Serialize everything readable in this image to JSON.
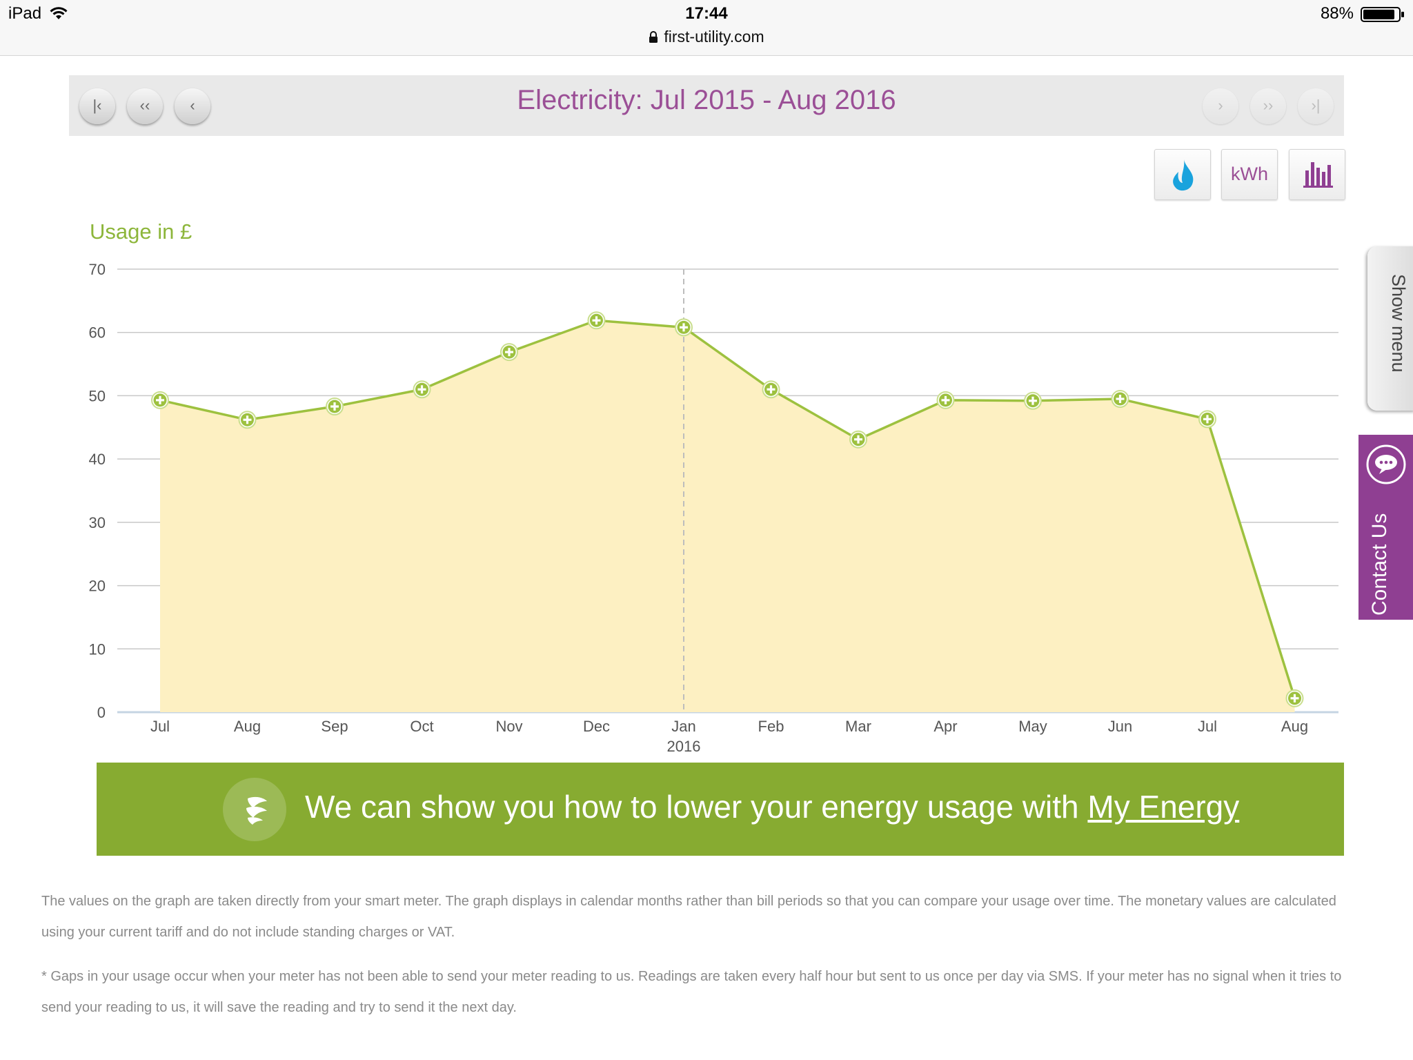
{
  "status_bar": {
    "device": "iPad",
    "time": "17:44",
    "battery": "88%",
    "url": "first-utility.com"
  },
  "header": {
    "title": "Electricity: Jul 2015 - Aug 2016",
    "nav_left": [
      "|‹",
      "‹‹",
      "‹"
    ],
    "nav_right": [
      "›",
      "››",
      "›|"
    ]
  },
  "view_toggles": {
    "kwh_label": "kWh",
    "icons": [
      "gas-drop-icon",
      "kwh-text",
      "bar-chart-icon"
    ]
  },
  "side_tabs": {
    "show_menu": "Show menu",
    "contact_us": "Contact Us"
  },
  "banner": {
    "text": "We can show you how to lower your energy usage with ",
    "link": "My Energy"
  },
  "footnotes": [
    "The values on the graph are taken directly from your smart meter. The graph displays in calendar months rather than bill periods so that you can compare your usage over time. The monetary values are calculated using your current tariff and do not include standing charges or VAT.",
    "* Gaps in your usage occur when your meter has not been able to send your meter reading to us. Readings are taken every half hour but sent to us once per day via SMS. If your meter has no signal when it tries to send your reading to us, it will save the reading and try to send it the next day."
  ],
  "colors": {
    "accent_purple": "#9b4f96",
    "line_green": "#9dc13f",
    "area_fill": "#fdf0c2",
    "banner_green": "#87ab31"
  },
  "chart_data": {
    "type": "area",
    "ylabel": "Usage in £",
    "categories": [
      "Jul",
      "Aug",
      "Sep",
      "Oct",
      "Nov",
      "Dec",
      "Jan",
      "Feb",
      "Mar",
      "Apr",
      "May",
      "Jun",
      "Jul",
      "Aug"
    ],
    "year_marker": {
      "category_index": 6,
      "label": "2016"
    },
    "values": [
      49.3,
      46.2,
      48.3,
      51.0,
      56.9,
      61.9,
      60.8,
      51.0,
      43.1,
      49.3,
      49.2,
      49.5,
      46.3,
      2.2
    ],
    "ylim": [
      0,
      70
    ],
    "yticks": [
      "0",
      "10",
      "20",
      "30",
      "40",
      "50",
      "60",
      "70"
    ],
    "grid": true,
    "legend": "none"
  }
}
